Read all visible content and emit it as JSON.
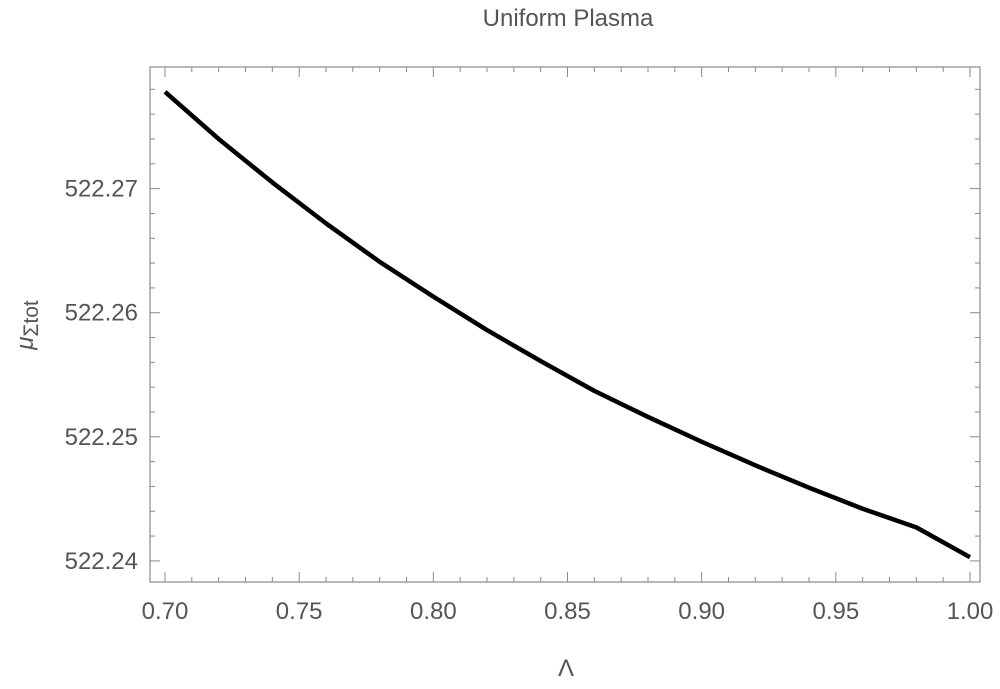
{
  "chart_data": {
    "type": "line",
    "title": "Uniform Plasma",
    "xlabel": "Λ",
    "ylabel": "μΣtot",
    "ylabel_parts": {
      "main": "μ",
      "sub": "Σtot"
    },
    "xlim": [
      0.7,
      1.0
    ],
    "ylim": [
      522.2383,
      522.2798
    ],
    "x_ticks": [
      0.7,
      0.75,
      0.8,
      0.85,
      0.9,
      0.95,
      1.0
    ],
    "x_tick_labels": [
      "0.70",
      "0.75",
      "0.80",
      "0.85",
      "0.90",
      "0.95",
      "1.00"
    ],
    "y_ticks": [
      522.24,
      522.25,
      522.26,
      522.27
    ],
    "y_tick_labels": [
      "522.24",
      "522.25",
      "522.26",
      "522.27"
    ],
    "grid": false,
    "legend": "none",
    "line_color": "#000000",
    "series": [
      {
        "x": [
          0.7,
          0.72,
          0.74,
          0.76,
          0.78,
          0.8,
          0.82,
          0.84,
          0.86,
          0.88,
          0.9,
          0.92,
          0.94,
          0.96,
          0.98,
          1.0
        ],
        "y": [
          522.2778,
          522.274,
          522.2705,
          522.2672,
          522.2641,
          522.2613,
          522.2586,
          522.2561,
          522.2537,
          522.2516,
          522.2496,
          522.2477,
          522.2459,
          522.2442,
          522.2427,
          522.2403
        ]
      }
    ]
  }
}
